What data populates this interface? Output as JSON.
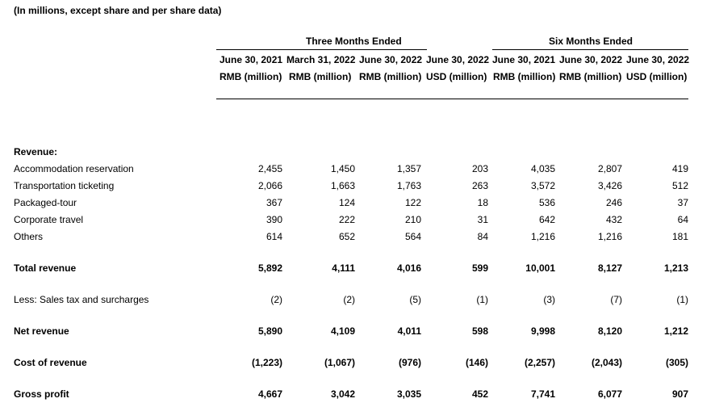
{
  "caption": "(In millions, except share and per share data)",
  "groups": [
    "Three Months Ended",
    "Six Months Ended"
  ],
  "columns": [
    {
      "date": "June 30, 2021",
      "unit": "RMB (million)"
    },
    {
      "date": "March 31, 2022",
      "unit": "RMB (million)"
    },
    {
      "date": "June 30, 2022",
      "unit": "RMB (million)"
    },
    {
      "date": "June 30, 2022",
      "unit": "USD (million)"
    },
    {
      "date": "June 30, 2021",
      "unit": "RMB (million)"
    },
    {
      "date": "June 30, 2022",
      "unit": "RMB (million)"
    },
    {
      "date": "June 30, 2022",
      "unit": "USD (million)"
    }
  ],
  "section_label": "Revenue:",
  "rows": [
    {
      "label": "Accommodation reservation",
      "bold": false,
      "values": [
        "2,455",
        "1,450",
        "1,357",
        "203",
        "4,035",
        "2,807",
        "419"
      ]
    },
    {
      "label": "Transportation ticketing",
      "bold": false,
      "values": [
        "2,066",
        "1,663",
        "1,763",
        "263",
        "3,572",
        "3,426",
        "512"
      ]
    },
    {
      "label": "Packaged-tour",
      "bold": false,
      "values": [
        "367",
        "124",
        "122",
        "18",
        "536",
        "246",
        "37"
      ]
    },
    {
      "label": "Corporate travel",
      "bold": false,
      "values": [
        "390",
        "222",
        "210",
        "31",
        "642",
        "432",
        "64"
      ]
    },
    {
      "label": "Others",
      "bold": false,
      "values": [
        "614",
        "652",
        "564",
        "84",
        "1,216",
        "1,216",
        "181"
      ]
    },
    {
      "label": "Total revenue",
      "bold": true,
      "values": [
        "5,892",
        "4,111",
        "4,016",
        "599",
        "10,001",
        "8,127",
        "1,213"
      ]
    },
    {
      "label": "Less: Sales tax and surcharges",
      "bold": false,
      "values": [
        "(2)",
        "(2)",
        "(5)",
        "(1)",
        "(3)",
        "(7)",
        "(1)"
      ]
    },
    {
      "label": "Net revenue",
      "bold": true,
      "values": [
        "5,890",
        "4,109",
        "4,011",
        "598",
        "9,998",
        "8,120",
        "1,212"
      ]
    },
    {
      "label": "Cost of revenue",
      "bold": true,
      "values": [
        "(1,223)",
        "(1,067)",
        "(976)",
        "(146)",
        "(2,257)",
        "(2,043)",
        "(305)"
      ]
    },
    {
      "label": "Gross profit",
      "bold": true,
      "values": [
        "4,667",
        "3,042",
        "3,035",
        "452",
        "7,741",
        "6,077",
        "907"
      ]
    }
  ]
}
